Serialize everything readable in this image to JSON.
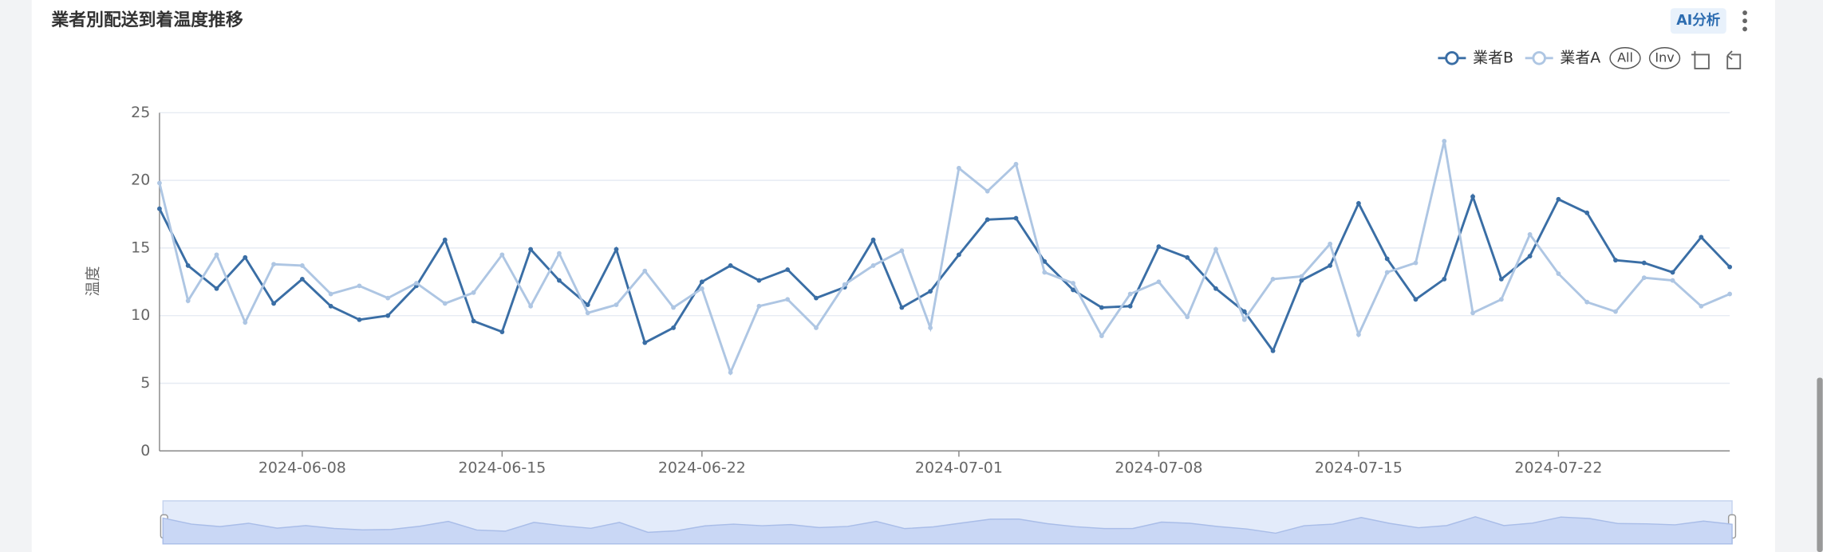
{
  "chart_data": {
    "type": "line",
    "title": "業者別配送到着温度推移",
    "button": "AI分析",
    "legend_buttons": [
      "All",
      "Inv"
    ],
    "ylabel": "温度",
    "x": [
      "2024-06-03",
      "2024-06-04",
      "2024-06-05",
      "2024-06-06",
      "2024-06-07",
      "2024-06-08",
      "2024-06-09",
      "2024-06-10",
      "2024-06-11",
      "2024-06-12",
      "2024-06-13",
      "2024-06-14",
      "2024-06-15",
      "2024-06-16",
      "2024-06-17",
      "2024-06-18",
      "2024-06-19",
      "2024-06-20",
      "2024-06-21",
      "2024-06-22",
      "2024-06-23",
      "2024-06-24",
      "2024-06-25",
      "2024-06-26",
      "2024-06-27",
      "2024-06-28",
      "2024-06-29",
      "2024-06-30",
      "2024-07-01",
      "2024-07-02",
      "2024-07-03",
      "2024-07-04",
      "2024-07-05",
      "2024-07-06",
      "2024-07-07",
      "2024-07-08",
      "2024-07-09",
      "2024-07-10",
      "2024-07-11",
      "2024-07-12",
      "2024-07-13",
      "2024-07-14",
      "2024-07-15",
      "2024-07-16",
      "2024-07-17",
      "2024-07-18",
      "2024-07-19",
      "2024-07-20",
      "2024-07-21",
      "2024-07-22",
      "2024-07-23",
      "2024-07-24",
      "2024-07-25",
      "2024-07-26",
      "2024-07-27",
      "2024-07-28"
    ],
    "series": [
      {
        "name": "業者B",
        "color": "#3a6ea5",
        "values": [
          17.9,
          13.7,
          12.0,
          14.3,
          10.9,
          12.7,
          10.7,
          9.7,
          10.0,
          12.2,
          15.6,
          9.6,
          8.8,
          14.9,
          12.6,
          10.8,
          14.9,
          8.0,
          9.1,
          12.5,
          13.7,
          12.6,
          13.4,
          11.3,
          12.1,
          15.6,
          10.6,
          11.8,
          14.5,
          17.1,
          17.2,
          14.0,
          11.9,
          10.6,
          10.7,
          15.1,
          14.3,
          12.0,
          10.3,
          7.4,
          12.6,
          13.7,
          18.3,
          14.2,
          11.2,
          12.7,
          18.8,
          12.7,
          14.4,
          18.6,
          17.6,
          14.1,
          13.9,
          13.2,
          15.8,
          13.6
        ]
      },
      {
        "name": "業者A",
        "color": "#aec6e3",
        "values": [
          19.8,
          11.1,
          14.5,
          9.5,
          13.8,
          13.7,
          11.6,
          12.2,
          11.3,
          12.4,
          10.9,
          11.7,
          14.5,
          10.7,
          14.6,
          10.2,
          10.8,
          13.3,
          10.6,
          12.0,
          5.8,
          10.7,
          11.2,
          9.1,
          12.3,
          13.7,
          14.8,
          9.1,
          20.9,
          19.2,
          21.2,
          13.2,
          12.4,
          8.5,
          11.6,
          12.5,
          9.9,
          14.9,
          9.7,
          12.7,
          12.9,
          15.3,
          8.6,
          13.2,
          13.9,
          22.9,
          10.2,
          11.2,
          16.0,
          13.1,
          11.0,
          10.3,
          12.8,
          12.6,
          10.7,
          11.6
        ]
      }
    ],
    "xlim": [
      "2024-06-03",
      "2024-07-28"
    ],
    "xticks": [
      "2024-06-08",
      "2024-06-15",
      "2024-06-22",
      "2024-07-01",
      "2024-07-08",
      "2024-07-15",
      "2024-07-22"
    ],
    "ylim": [
      0,
      25
    ],
    "yticks": [
      0,
      5,
      10,
      15,
      20,
      25
    ],
    "grid": true,
    "legend": "top-right"
  }
}
